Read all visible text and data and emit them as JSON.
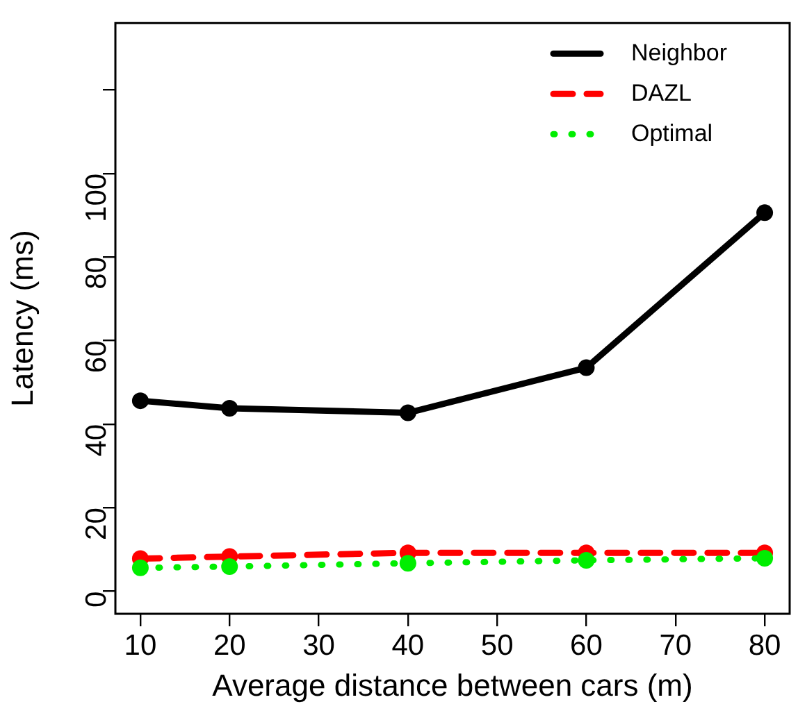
{
  "chart_data": {
    "type": "line",
    "xlabel": "Average distance between cars (m)",
    "ylabel": "Latency (ms)",
    "x": [
      10,
      20,
      40,
      60,
      80
    ],
    "series": [
      {
        "name": "Neighbor",
        "color": "#000000",
        "line_style": "solid",
        "values": [
          45.6,
          43.8,
          42.7,
          53.5,
          90.6
        ]
      },
      {
        "name": "DAZL",
        "color": "#ff0000",
        "line_style": "dashed",
        "values": [
          7.8,
          8.3,
          9.2,
          9.2,
          9.2
        ]
      },
      {
        "name": "Optimal",
        "color": "#00ee00",
        "line_style": "dotted",
        "values": [
          5.6,
          5.9,
          6.7,
          7.4,
          7.9
        ]
      }
    ],
    "xlim": [
      7.2,
      82.8
    ],
    "xticks": [
      10,
      20,
      30,
      40,
      50,
      60,
      70,
      80
    ],
    "ylim": [
      -5.4,
      136
    ],
    "yticks": [
      0,
      20,
      40,
      60,
      80,
      100,
      {
        "value": 120,
        "label": null
      }
    ],
    "marker": "circle",
    "grid": false,
    "legend": "top right"
  }
}
